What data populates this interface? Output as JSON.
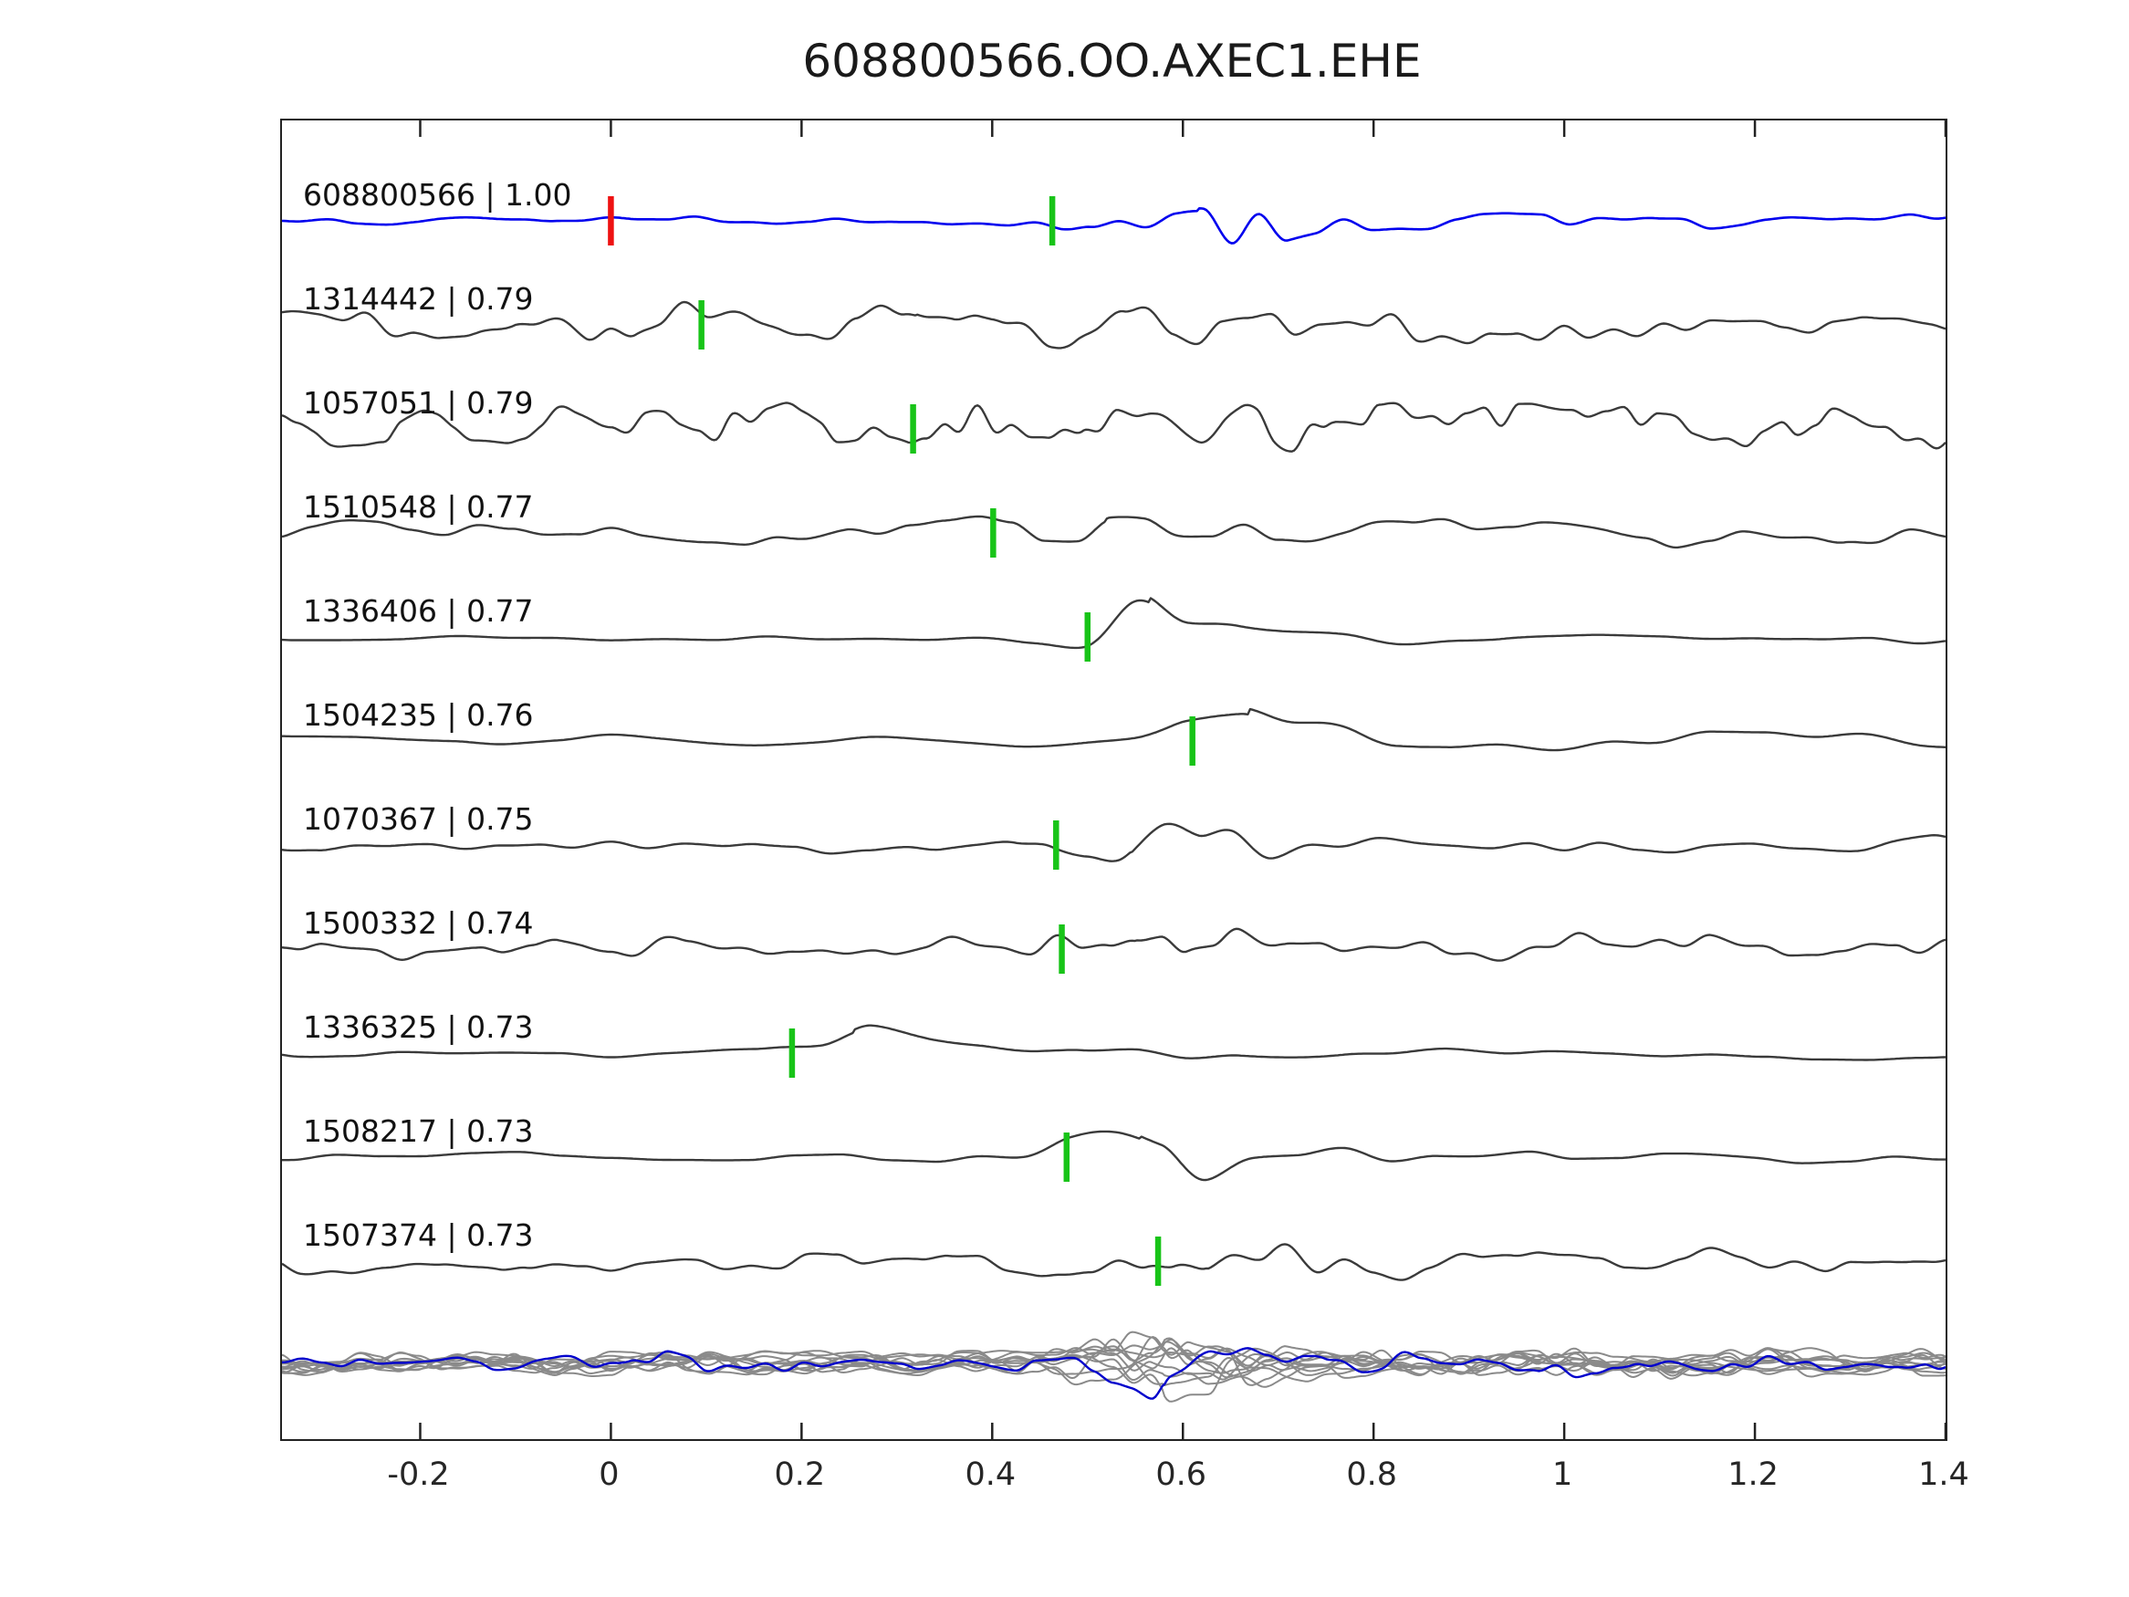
{
  "title": "608800566.OO.AXEC1.EHE",
  "chart_data": {
    "type": "line",
    "title": "608800566.OO.AXEC1.EHE",
    "subtitle": "",
    "xlabel": "",
    "ylabel": "",
    "xlim": [
      -0.345,
      1.4
    ],
    "grid": false,
    "legend": "none",
    "x_ticks": [
      -0.2,
      0,
      0.2,
      0.4,
      0.6,
      0.8,
      1,
      1.2,
      1.4
    ],
    "x_tick_labels": [
      "-0.2",
      "0",
      "0.2",
      "0.4",
      "0.6",
      "0.8",
      "1",
      "1.2",
      "1.4"
    ],
    "description": "Template-matching waveform similarity plot: template trace (blue) on top, ten detected event traces (dark gray) below with cross-correlation values, green pick markers per trace, red template pick at t=0, and an aligned overlay stack of all traces at the bottom.",
    "traces": [
      {
        "id": "608800566",
        "correlation": "1.00",
        "label": "608800566 | 1.00",
        "color": "#0000ee",
        "is_template": true,
        "pick_time": 0.463,
        "pick_color": "#18c418",
        "template_pick_time": 0.0,
        "template_pick_color": "#ee1111",
        "render": {
          "seed": 11,
          "noise": 5,
          "freq": 13,
          "burst": 44,
          "coda": 13,
          "c": 0.615,
          "w": 0.085
        }
      },
      {
        "id": "1314442",
        "correlation": "0.79",
        "label": "1314442 | 0.79",
        "color": "#3a3a3a",
        "is_template": false,
        "pick_time": 0.095,
        "pick_color": "#18c418",
        "render": {
          "seed": 22,
          "noise": 19,
          "freq": 15,
          "burst": 16,
          "coda": 5,
          "c": 0.32,
          "w": 0.3
        }
      },
      {
        "id": "1057051",
        "correlation": "0.79",
        "label": "1057051 | 0.79",
        "color": "#3a3a3a",
        "is_template": false,
        "pick_time": 0.317,
        "pick_color": "#18c418",
        "render": {
          "seed": 33,
          "noise": 22,
          "freq": 21,
          "burst": 10,
          "coda": 0,
          "c": 0.6,
          "w": 0.4
        }
      },
      {
        "id": "1510548",
        "correlation": "0.77",
        "label": "1510548 | 0.77",
        "color": "#3a3a3a",
        "is_template": false,
        "pick_time": 0.401,
        "pick_color": "#18c418",
        "render": {
          "seed": 44,
          "noise": 13,
          "freq": 11,
          "burst": 26,
          "coda": 7,
          "c": 0.52,
          "w": 0.11
        }
      },
      {
        "id": "1336406",
        "correlation": "0.77",
        "label": "1336406 | 0.77",
        "color": "#3a3a3a",
        "is_template": false,
        "pick_time": 0.5,
        "pick_color": "#18c418",
        "render": {
          "seed": 55,
          "noise": 6,
          "freq": 7,
          "burst": 40,
          "coda": 7,
          "c": 0.565,
          "w": 0.065
        }
      },
      {
        "id": "1504235",
        "correlation": "0.76",
        "label": "1504235 | 0.76",
        "color": "#3a3a3a",
        "is_template": false,
        "pick_time": 0.61,
        "pick_color": "#18c418",
        "render": {
          "seed": 66,
          "noise": 7,
          "freq": 7,
          "burst": 36,
          "coda": 9,
          "c": 0.67,
          "w": 0.08
        }
      },
      {
        "id": "1070367",
        "correlation": "0.75",
        "label": "1070367 | 0.75",
        "color": "#3a3a3a",
        "is_template": false,
        "pick_time": 0.467,
        "pick_color": "#18c418",
        "render": {
          "seed": 77,
          "noise": 9,
          "freq": 10,
          "burst": 32,
          "coda": 7,
          "c": 0.545,
          "w": 0.075
        }
      },
      {
        "id": "1500332",
        "correlation": "0.74",
        "label": "1500332 | 0.74",
        "color": "#3a3a3a",
        "is_template": false,
        "pick_time": 0.473,
        "pick_color": "#18c418",
        "render": {
          "seed": 88,
          "noise": 15,
          "freq": 14,
          "burst": 28,
          "coda": 5,
          "c": 0.55,
          "w": 0.075
        }
      },
      {
        "id": "1336325",
        "correlation": "0.73",
        "label": "1336325 | 0.73",
        "color": "#3a3a3a",
        "is_template": false,
        "pick_time": 0.19,
        "pick_color": "#18c418",
        "render": {
          "seed": 99,
          "noise": 7,
          "freq": 7,
          "burst": 32,
          "coda": 5,
          "c": 0.255,
          "w": 0.06
        }
      },
      {
        "id": "1508217",
        "correlation": "0.73",
        "label": "1508217 | 0.73",
        "color": "#3a3a3a",
        "is_template": false,
        "pick_time": 0.478,
        "pick_color": "#18c418",
        "render": {
          "seed": 110,
          "noise": 9,
          "freq": 8,
          "burst": 36,
          "coda": 7,
          "c": 0.555,
          "w": 0.08
        }
      },
      {
        "id": "1507374",
        "correlation": "0.73",
        "label": "1507374 | 0.73",
        "color": "#3a3a3a",
        "is_template": false,
        "pick_time": 0.574,
        "pick_color": "#18c418",
        "render": {
          "seed": 121,
          "noise": 17,
          "freq": 13,
          "burst": 26,
          "coda": 6,
          "c": 0.625,
          "w": 0.09
        }
      }
    ],
    "overlay": {
      "description": "All detected traces aligned and superimposed",
      "gray_count": 11,
      "gray_color": "#8a8a8a",
      "highlight_color": "#0000cc",
      "render": {
        "noise": 13,
        "freq": 19,
        "burst": 20,
        "coda": 4,
        "c": 0.58,
        "w": 0.07
      }
    },
    "colors": {
      "template_trace": "#0000ee",
      "detection_trace": "#3a3a3a",
      "pick_marker": "#18c418",
      "template_pick_marker": "#ee1111",
      "axis": "#222222"
    }
  }
}
